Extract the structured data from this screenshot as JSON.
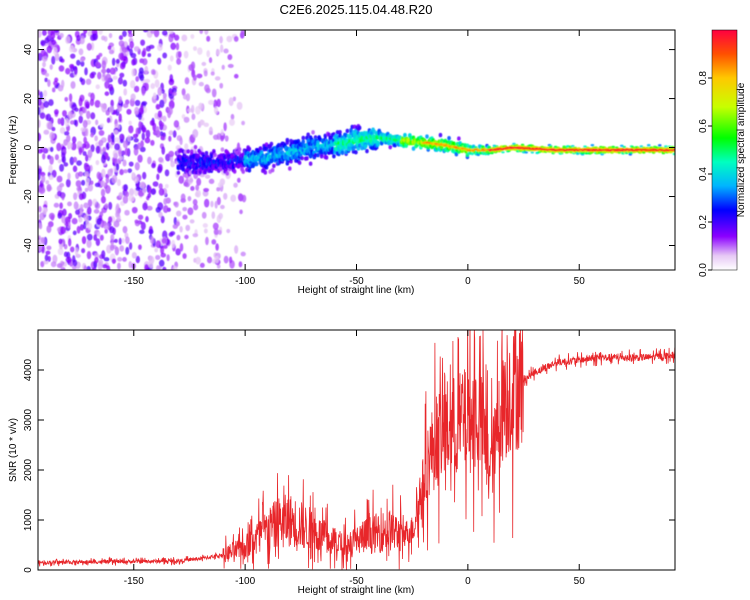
{
  "title": "C2E6.2025.115.04.48.R20",
  "colors": {
    "snr_line": "#e8262a",
    "axis": "#000000",
    "background": "#ffffff"
  },
  "chart_data": [
    {
      "type": "heatmap",
      "title": "C2E6.2025.115.04.48.R20",
      "xlabel": "Height of straight line (km)",
      "ylabel": "Frequency (Hz)",
      "xlim": [
        -193,
        93
      ],
      "ylim": [
        -50,
        48
      ],
      "x_ticks": [
        -150,
        -100,
        -50,
        0,
        50
      ],
      "y_ticks": [
        -40,
        -20,
        0,
        20,
        40
      ],
      "colorbar": {
        "label": "Normalized spectral amplitude",
        "range": [
          0.0,
          1.0
        ],
        "ticks": [
          "0.0",
          "0.2",
          "0.4",
          "0.6",
          "0.8"
        ],
        "tick_values": [
          0.0,
          0.2,
          0.4,
          0.6,
          0.8
        ]
      },
      "ridge": {
        "x": [
          -125,
          -110,
          -100,
          -90,
          -80,
          -70,
          -60,
          -50,
          -40,
          -30,
          -20,
          -10,
          0,
          10,
          20,
          40,
          60,
          93
        ],
        "freq": [
          -6,
          -6,
          -5,
          -4,
          -2,
          0,
          1,
          3,
          4,
          3,
          2,
          1,
          -1,
          -1,
          0,
          -1,
          -1,
          -1
        ]
      }
    },
    {
      "type": "line",
      "xlabel": "Height of straight line (km)",
      "ylabel": "SNR (10 * v/v)",
      "xlim": [
        -193,
        93
      ],
      "ylim": [
        0,
        4800
      ],
      "x_ticks": [
        -150,
        -100,
        -50,
        0,
        50
      ],
      "y_ticks": [
        0,
        1000,
        2000,
        3000,
        4000
      ],
      "series": [
        {
          "name": "SNR",
          "x": [
            -193,
            -170,
            -150,
            -130,
            -120,
            -110,
            -100,
            -95,
            -90,
            -85,
            -80,
            -75,
            -70,
            -65,
            -60,
            -55,
            -50,
            -45,
            -40,
            -35,
            -30,
            -25,
            -22,
            -20,
            -18,
            -15,
            -12,
            -10,
            -5,
            0,
            5,
            10,
            12,
            15,
            20,
            25,
            30,
            35,
            40,
            50,
            60,
            70,
            80,
            93
          ],
          "y": [
            150,
            160,
            170,
            180,
            230,
            300,
            450,
            650,
            800,
            950,
            1000,
            900,
            800,
            650,
            550,
            500,
            600,
            700,
            750,
            800,
            700,
            800,
            1300,
            1700,
            2200,
            2500,
            2700,
            2800,
            2900,
            3000,
            3100,
            2100,
            2400,
            3300,
            3600,
            3800,
            3950,
            4050,
            4150,
            4200,
            4250,
            4250,
            4250,
            4300
          ]
        }
      ]
    }
  ]
}
